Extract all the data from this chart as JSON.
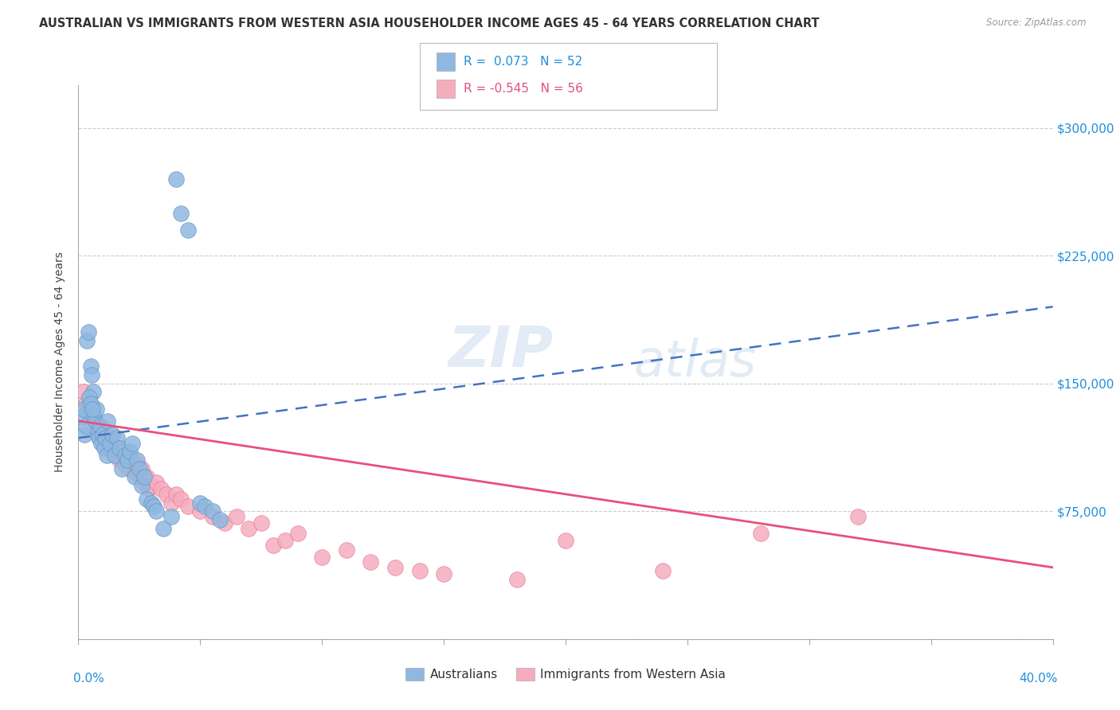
{
  "title": "AUSTRALIAN VS IMMIGRANTS FROM WESTERN ASIA HOUSEHOLDER INCOME AGES 45 - 64 YEARS CORRELATION CHART",
  "source": "Source: ZipAtlas.com",
  "ylabel": "Householder Income Ages 45 - 64 years",
  "watermark": "ZIPat las",
  "legend_label1": "Australians",
  "legend_label2": "Immigrants from Western Asia",
  "blue_color": "#8FB8E0",
  "pink_color": "#F5ADBE",
  "blue_edge_color": "#5A8FC0",
  "pink_edge_color": "#E87090",
  "blue_line_color": "#4472C4",
  "pink_line_color": "#E8507A",
  "r1": 0.073,
  "n1": 52,
  "r2": -0.545,
  "n2": 56,
  "xmin": 0.0,
  "xmax": 40.0,
  "ymin": 0,
  "ymax": 325000,
  "yticks": [
    0,
    75000,
    150000,
    225000,
    300000
  ],
  "blue_trend_x0": 0.0,
  "blue_trend_y0": 118000,
  "blue_trend_x1": 40.0,
  "blue_trend_y1": 195000,
  "pink_trend_x0": 0.0,
  "pink_trend_y0": 128000,
  "pink_trend_x1": 40.0,
  "pink_trend_y1": 42000,
  "blue_x": [
    0.15,
    0.2,
    0.25,
    0.3,
    0.35,
    0.4,
    0.5,
    0.55,
    0.6,
    0.65,
    0.7,
    0.75,
    0.8,
    0.85,
    0.9,
    0.95,
    1.0,
    1.05,
    1.1,
    1.15,
    1.2,
    1.3,
    1.4,
    1.5,
    1.6,
    1.7,
    1.8,
    1.9,
    2.0,
    2.1,
    2.2,
    2.3,
    2.4,
    2.5,
    2.6,
    2.7,
    2.8,
    3.0,
    3.1,
    3.2,
    3.5,
    3.8,
    4.0,
    4.2,
    4.5,
    5.0,
    5.2,
    5.5,
    5.8,
    0.45,
    0.52,
    0.58
  ],
  "blue_y": [
    130000,
    135000,
    120000,
    125000,
    175000,
    180000,
    160000,
    155000,
    145000,
    130000,
    128000,
    135000,
    122000,
    118000,
    125000,
    115000,
    120000,
    112000,
    118000,
    108000,
    128000,
    115000,
    120000,
    108000,
    118000,
    112000,
    100000,
    108000,
    105000,
    110000,
    115000,
    95000,
    105000,
    100000,
    90000,
    95000,
    82000,
    80000,
    78000,
    75000,
    65000,
    72000,
    270000,
    250000,
    240000,
    80000,
    78000,
    75000,
    70000,
    142000,
    138000,
    135000
  ],
  "pink_x": [
    0.2,
    0.3,
    0.4,
    0.5,
    0.6,
    0.7,
    0.8,
    0.9,
    1.0,
    1.1,
    1.2,
    1.3,
    1.4,
    1.5,
    1.6,
    1.7,
    1.8,
    1.9,
    2.0,
    2.1,
    2.2,
    2.3,
    2.4,
    2.5,
    2.6,
    2.7,
    2.8,
    2.9,
    3.0,
    3.2,
    3.4,
    3.6,
    3.8,
    4.0,
    4.2,
    4.5,
    5.0,
    5.5,
    6.0,
    6.5,
    7.0,
    7.5,
    8.0,
    8.5,
    9.0,
    10.0,
    11.0,
    12.0,
    13.0,
    14.0,
    15.0,
    18.0,
    20.0,
    24.0,
    28.0,
    32.0
  ],
  "pink_y": [
    145000,
    138000,
    135000,
    130000,
    125000,
    128000,
    120000,
    118000,
    115000,
    122000,
    118000,
    112000,
    115000,
    108000,
    112000,
    105000,
    110000,
    102000,
    108000,
    100000,
    105000,
    98000,
    102000,
    95000,
    100000,
    92000,
    95000,
    88000,
    90000,
    92000,
    88000,
    85000,
    80000,
    85000,
    82000,
    78000,
    75000,
    72000,
    68000,
    72000,
    65000,
    68000,
    55000,
    58000,
    62000,
    48000,
    52000,
    45000,
    42000,
    40000,
    38000,
    35000,
    58000,
    40000,
    62000,
    72000
  ]
}
